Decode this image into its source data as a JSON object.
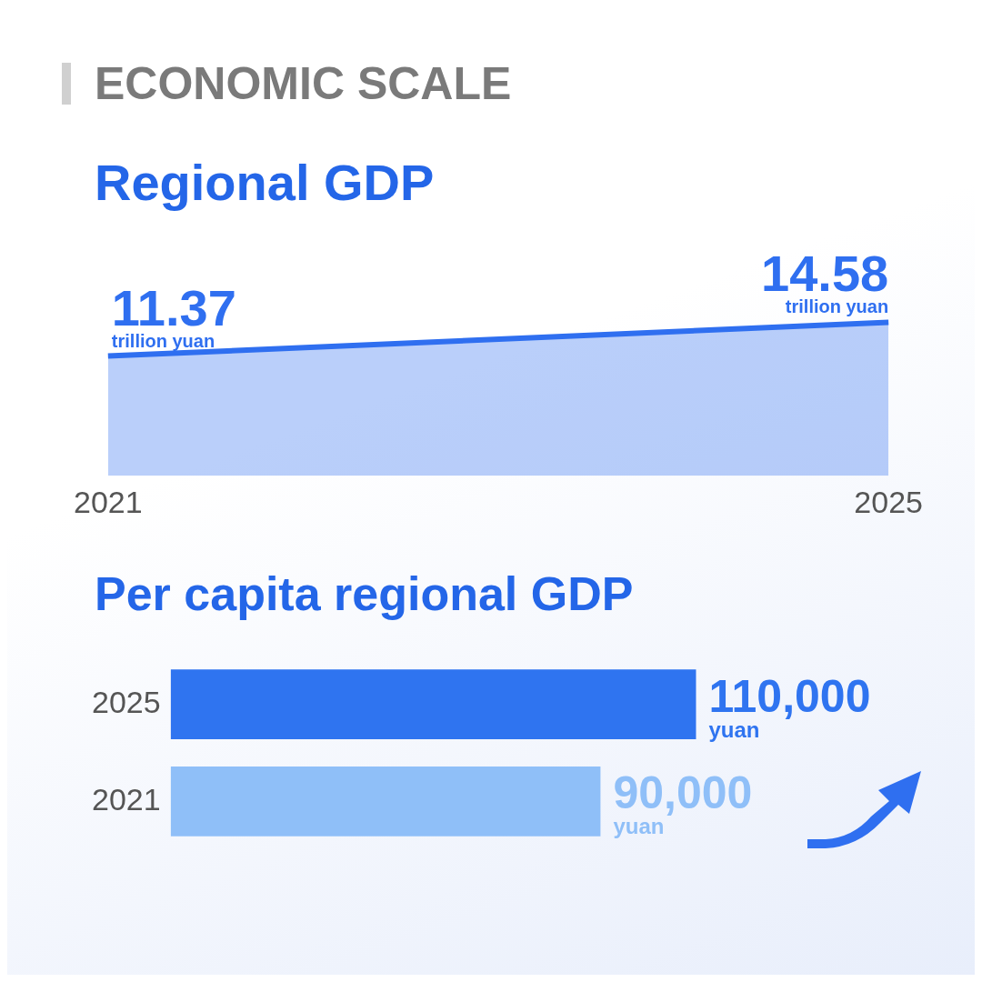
{
  "chart_data": [
    {
      "type": "area",
      "title": "ECONOMIC SCALE",
      "subtitle": "Regional GDP",
      "categories": [
        "2021",
        "2025"
      ],
      "values": [
        11.37,
        14.58
      ],
      "color": "#2f6ff0",
      "value_labels": [
        "11.37 trillion yuan",
        "14.58 trillion yuan"
      ],
      "tick_labels": "x"
    },
    {
      "type": "bar",
      "orientation": "horizontal",
      "title": "Per capita regional GDP",
      "categories": [
        "2025",
        "2021"
      ],
      "values": [
        110000,
        90000
      ],
      "colors": [
        "#2f74f0",
        "#8fbff8"
      ],
      "value_labels": [
        "110,000 yuan",
        "90,000 yuan"
      ],
      "tick_labels": "y"
    }
  ]
}
